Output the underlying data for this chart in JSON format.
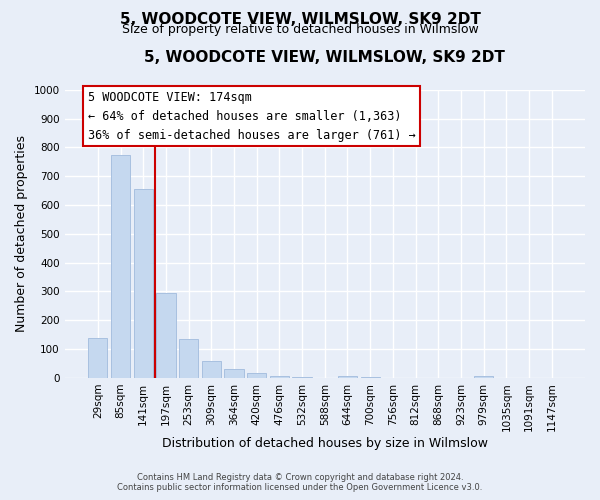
{
  "title": "5, WOODCOTE VIEW, WILMSLOW, SK9 2DT",
  "subtitle": "Size of property relative to detached houses in Wilmslow",
  "xlabel": "Distribution of detached houses by size in Wilmslow",
  "ylabel": "Number of detached properties",
  "bar_labels": [
    "29sqm",
    "85sqm",
    "141sqm",
    "197sqm",
    "253sqm",
    "309sqm",
    "364sqm",
    "420sqm",
    "476sqm",
    "532sqm",
    "588sqm",
    "644sqm",
    "700sqm",
    "756sqm",
    "812sqm",
    "868sqm",
    "923sqm",
    "979sqm",
    "1035sqm",
    "1091sqm",
    "1147sqm"
  ],
  "bar_values": [
    140,
    775,
    655,
    295,
    135,
    57,
    32,
    17,
    8,
    2,
    0,
    7,
    2,
    0,
    0,
    0,
    0,
    8,
    0,
    0,
    0
  ],
  "bar_color": "#c5d8ef",
  "bar_edge_color": "#a8c0e0",
  "vline_x": 2.5,
  "vline_color": "#cc0000",
  "ylim": [
    0,
    1000
  ],
  "yticks": [
    0,
    100,
    200,
    300,
    400,
    500,
    600,
    700,
    800,
    900,
    1000
  ],
  "annotation_title": "5 WOODCOTE VIEW: 174sqm",
  "annotation_line1": "← 64% of detached houses are smaller (1,363)",
  "annotation_line2": "36% of semi-detached houses are larger (761) →",
  "annotation_box_color": "#ffffff",
  "annotation_border_color": "#cc0000",
  "footer_line1": "Contains HM Land Registry data © Crown copyright and database right 2024.",
  "footer_line2": "Contains public sector information licensed under the Open Government Licence v3.0.",
  "background_color": "#e8eef8",
  "plot_bg_color": "#e8eef8",
  "grid_color": "#ffffff",
  "title_fontsize": 11,
  "subtitle_fontsize": 9,
  "axis_label_fontsize": 9,
  "tick_fontsize": 7.5,
  "annotation_fontsize": 8.5
}
